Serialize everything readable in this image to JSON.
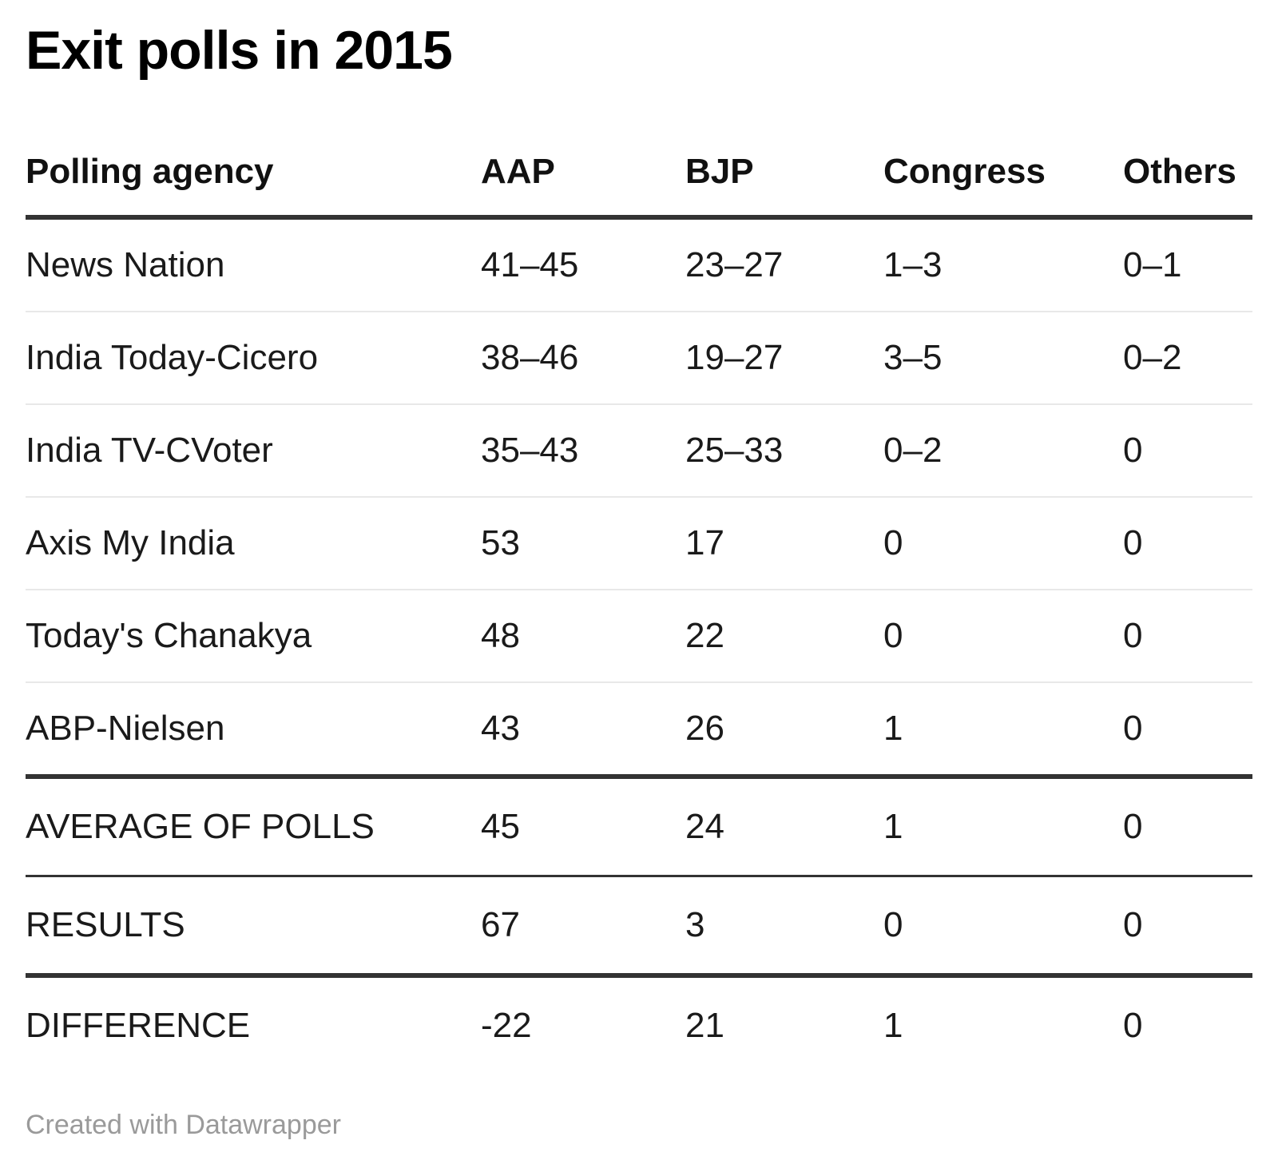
{
  "title": "Exit polls in 2015",
  "footer": {
    "credit": "Created with Datawrapper"
  },
  "colors": {
    "title_text": "#000000",
    "body_text": "#1a1a1a",
    "heavy_rule": "#333333",
    "light_rule": "#e8e8e8",
    "footer_text": "#9a9a9a",
    "background": "#ffffff"
  },
  "chart_data": {
    "type": "table",
    "title": "Exit polls in 2015",
    "columns": [
      "Polling agency",
      "AAP",
      "BJP",
      "Congress",
      "Others"
    ],
    "rows": [
      [
        "News Nation",
        "41–45",
        "23–27",
        "1–3",
        "0–1"
      ],
      [
        "India Today-Cicero",
        "38–46",
        "19–27",
        "3–5",
        "0–2"
      ],
      [
        "India TV-CVoter",
        "35–43",
        "25–33",
        "0–2",
        "0"
      ],
      [
        "Axis My India",
        "53",
        "17",
        "0",
        "0"
      ],
      [
        "Today's Chanakya",
        "48",
        "22",
        "0",
        "0"
      ],
      [
        "ABP-Nielsen",
        "43",
        "26",
        "1",
        "0"
      ],
      [
        "AVERAGE OF POLLS",
        "45",
        "24",
        "1",
        "0"
      ],
      [
        "RESULTS",
        "67",
        "3",
        "0",
        "0"
      ],
      [
        "DIFFERENCE",
        "-22",
        "21",
        "1",
        "0"
      ]
    ],
    "layout_hints": {
      "section_breaks_after_row_indices": [
        5,
        6,
        7
      ],
      "numeric_columns_left_aligned": true,
      "grid": "horizontal-rules-only"
    },
    "footer": "Created with Datawrapper"
  }
}
